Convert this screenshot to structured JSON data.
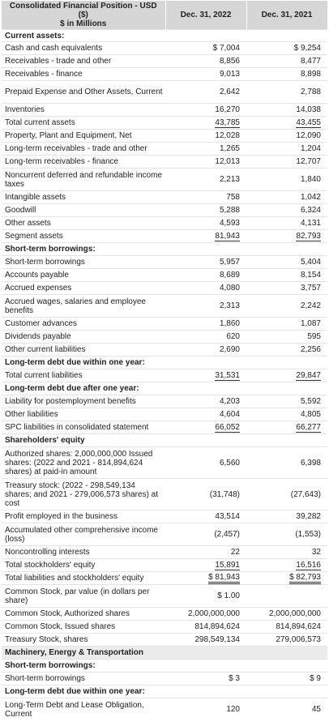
{
  "header": {
    "title_line1": "Consolidated Financial Position - USD",
    "title_line2": "($)",
    "title_line3": "$ in Millions",
    "col1": "Dec. 31, 2022",
    "col2": "Dec. 31, 2021"
  },
  "rows": [
    {
      "label": "Current assets:",
      "a": "",
      "b": "",
      "type": "section",
      "h": 15
    },
    {
      "label": "Cash and cash equivalents",
      "a": "$ 7,004",
      "b": "$ 9,254",
      "type": "row",
      "h": 16
    },
    {
      "label": "Receivables - trade and other",
      "a": "8,856",
      "b": "8,477",
      "type": "row",
      "h": 16
    },
    {
      "label": "Receivables - finance",
      "a": "9,013",
      "b": "8,898",
      "type": "row",
      "h": 16
    },
    {
      "label": "Prepaid Expense and Other Assets, Current",
      "a": "2,642",
      "b": "2,788",
      "type": "row",
      "h": 28
    },
    {
      "label": "Inventories",
      "a": "16,270",
      "b": "14,038",
      "type": "row",
      "h": 16
    },
    {
      "label": "Total current assets",
      "a": "43,785",
      "b": "43,455",
      "type": "row",
      "h": 16,
      "line": "single"
    },
    {
      "label": "Property, Plant and Equipment, Net",
      "a": "12,028",
      "b": "12,090",
      "type": "row",
      "h": 16
    },
    {
      "label": "Long-term receivables - trade and other",
      "a": "1,265",
      "b": "1,204",
      "type": "row",
      "h": 16
    },
    {
      "label": "Long-term receivables - finance",
      "a": "12,013",
      "b": "12,707",
      "type": "row",
      "h": 16
    },
    {
      "label": "Noncurrent deferred and refundable income taxes",
      "a": "2,213",
      "b": "1,840",
      "type": "row",
      "h": 28
    },
    {
      "label": "Intangible assets",
      "a": "758",
      "b": "1,042",
      "type": "row",
      "h": 16
    },
    {
      "label": "Goodwill",
      "a": "5,288",
      "b": "6,324",
      "type": "row",
      "h": 16
    },
    {
      "label": "Other assets",
      "a": "4,593",
      "b": "4,131",
      "type": "row",
      "h": 16
    },
    {
      "label": "Segment assets",
      "a": "81,943",
      "b": "82,793",
      "type": "row",
      "h": 16,
      "line": "single"
    },
    {
      "label": "Short-term borrowings:",
      "a": "",
      "b": "",
      "type": "section",
      "h": 16
    },
    {
      "label": "Short-term borrowings",
      "a": "5,957",
      "b": "5,404",
      "type": "row",
      "h": 16
    },
    {
      "label": "Accounts payable",
      "a": "8,689",
      "b": "8,154",
      "type": "row",
      "h": 16
    },
    {
      "label": "Accrued expenses",
      "a": "4,080",
      "b": "3,757",
      "type": "row",
      "h": 16
    },
    {
      "label": "Accrued wages, salaries and employee benefits",
      "a": "2,313",
      "b": "2,242",
      "type": "row",
      "h": 28
    },
    {
      "label": "Customer advances",
      "a": "1,860",
      "b": "1,087",
      "type": "row",
      "h": 16
    },
    {
      "label": "Dividends payable",
      "a": "620",
      "b": "595",
      "type": "row",
      "h": 16
    },
    {
      "label": "Other current liabilities",
      "a": "2,690",
      "b": "2,256",
      "type": "row",
      "h": 16
    },
    {
      "label": "Long-term debt due within one year:",
      "a": "",
      "b": "",
      "type": "section",
      "h": 16
    },
    {
      "label": "Total current liabilities",
      "a": "31,531",
      "b": "29,847",
      "type": "row",
      "h": 16,
      "line": "single"
    },
    {
      "label": "Long-term debt due after one year:",
      "a": "",
      "b": "",
      "type": "section",
      "h": 16
    },
    {
      "label": "Liability for postemployment benefits",
      "a": "4,203",
      "b": "5,592",
      "type": "row",
      "h": 16
    },
    {
      "label": "Other liabilities",
      "a": "4,604",
      "b": "4,805",
      "type": "row",
      "h": 16
    },
    {
      "label": "SPC liabilities in consolidated statement",
      "a": "66,052",
      "b": "66,277",
      "type": "row",
      "h": 16,
      "line": "single"
    },
    {
      "label": "Shareholders' equity",
      "a": "",
      "b": "",
      "type": "section",
      "h": 16
    },
    {
      "label": "Authorized shares: 2,000,000,000 Issued shares: (2022 and 2021 - 814,894,624 shares) at paid-in amount",
      "a": "6,560",
      "b": "6,398",
      "type": "row",
      "h": 39
    },
    {
      "label": "Treasury stock: (2022 - 298,549,134 shares; and 2021 - 279,006,573 shares) at cost",
      "a": "(31,748)",
      "b": "(27,643)",
      "type": "row",
      "h": 39
    },
    {
      "label": "Profit employed in the business",
      "a": "43,514",
      "b": "39,282",
      "type": "row",
      "h": 16
    },
    {
      "label": "Accumulated other comprehensive income (loss)",
      "a": "(2,457)",
      "b": "(1,553)",
      "type": "row",
      "h": 28
    },
    {
      "label": "Noncontrolling interests",
      "a": "22",
      "b": "32",
      "type": "row",
      "h": 16
    },
    {
      "label": "Total stockholders' equity",
      "a": "15,891",
      "b": "16,516",
      "type": "row",
      "h": 16,
      "line": "single"
    },
    {
      "label": "Total liabilities and stockholders' equity",
      "a": "$ 81,943",
      "b": "$ 82,793",
      "type": "row",
      "h": 16,
      "line": "double"
    },
    {
      "label": "Common Stock, par value (in dollars per share)",
      "a": "$ 1.00",
      "b": "",
      "type": "row",
      "h": 28
    },
    {
      "label": "Common Stock, Authorized shares",
      "a": "2,000,000,000",
      "b": "2,000,000,000",
      "type": "row",
      "h": 16
    },
    {
      "label": "Common Stock, Issued shares",
      "a": "814,894,624",
      "b": "814,894,624",
      "type": "row",
      "h": 16
    },
    {
      "label": "Treasury Stock, shares",
      "a": "298,549,134",
      "b": "279,006,573",
      "type": "row",
      "h": 16
    },
    {
      "label": "Machinery, Energy & Transportation",
      "a": "",
      "b": "",
      "type": "boldbg",
      "h": 16
    },
    {
      "label": "Short-term borrowings:",
      "a": "",
      "b": "",
      "type": "section",
      "h": 16
    },
    {
      "label": "Short-term borrowings",
      "a": "$ 3",
      "b": "$ 9",
      "type": "row",
      "h": 16
    },
    {
      "label": "Long-term debt due within one year:",
      "a": "",
      "b": "",
      "type": "section",
      "h": 16
    },
    {
      "label": "Long-Term Debt and Lease Obligation, Current",
      "a": "120",
      "b": "45",
      "type": "row",
      "h": 28
    }
  ]
}
